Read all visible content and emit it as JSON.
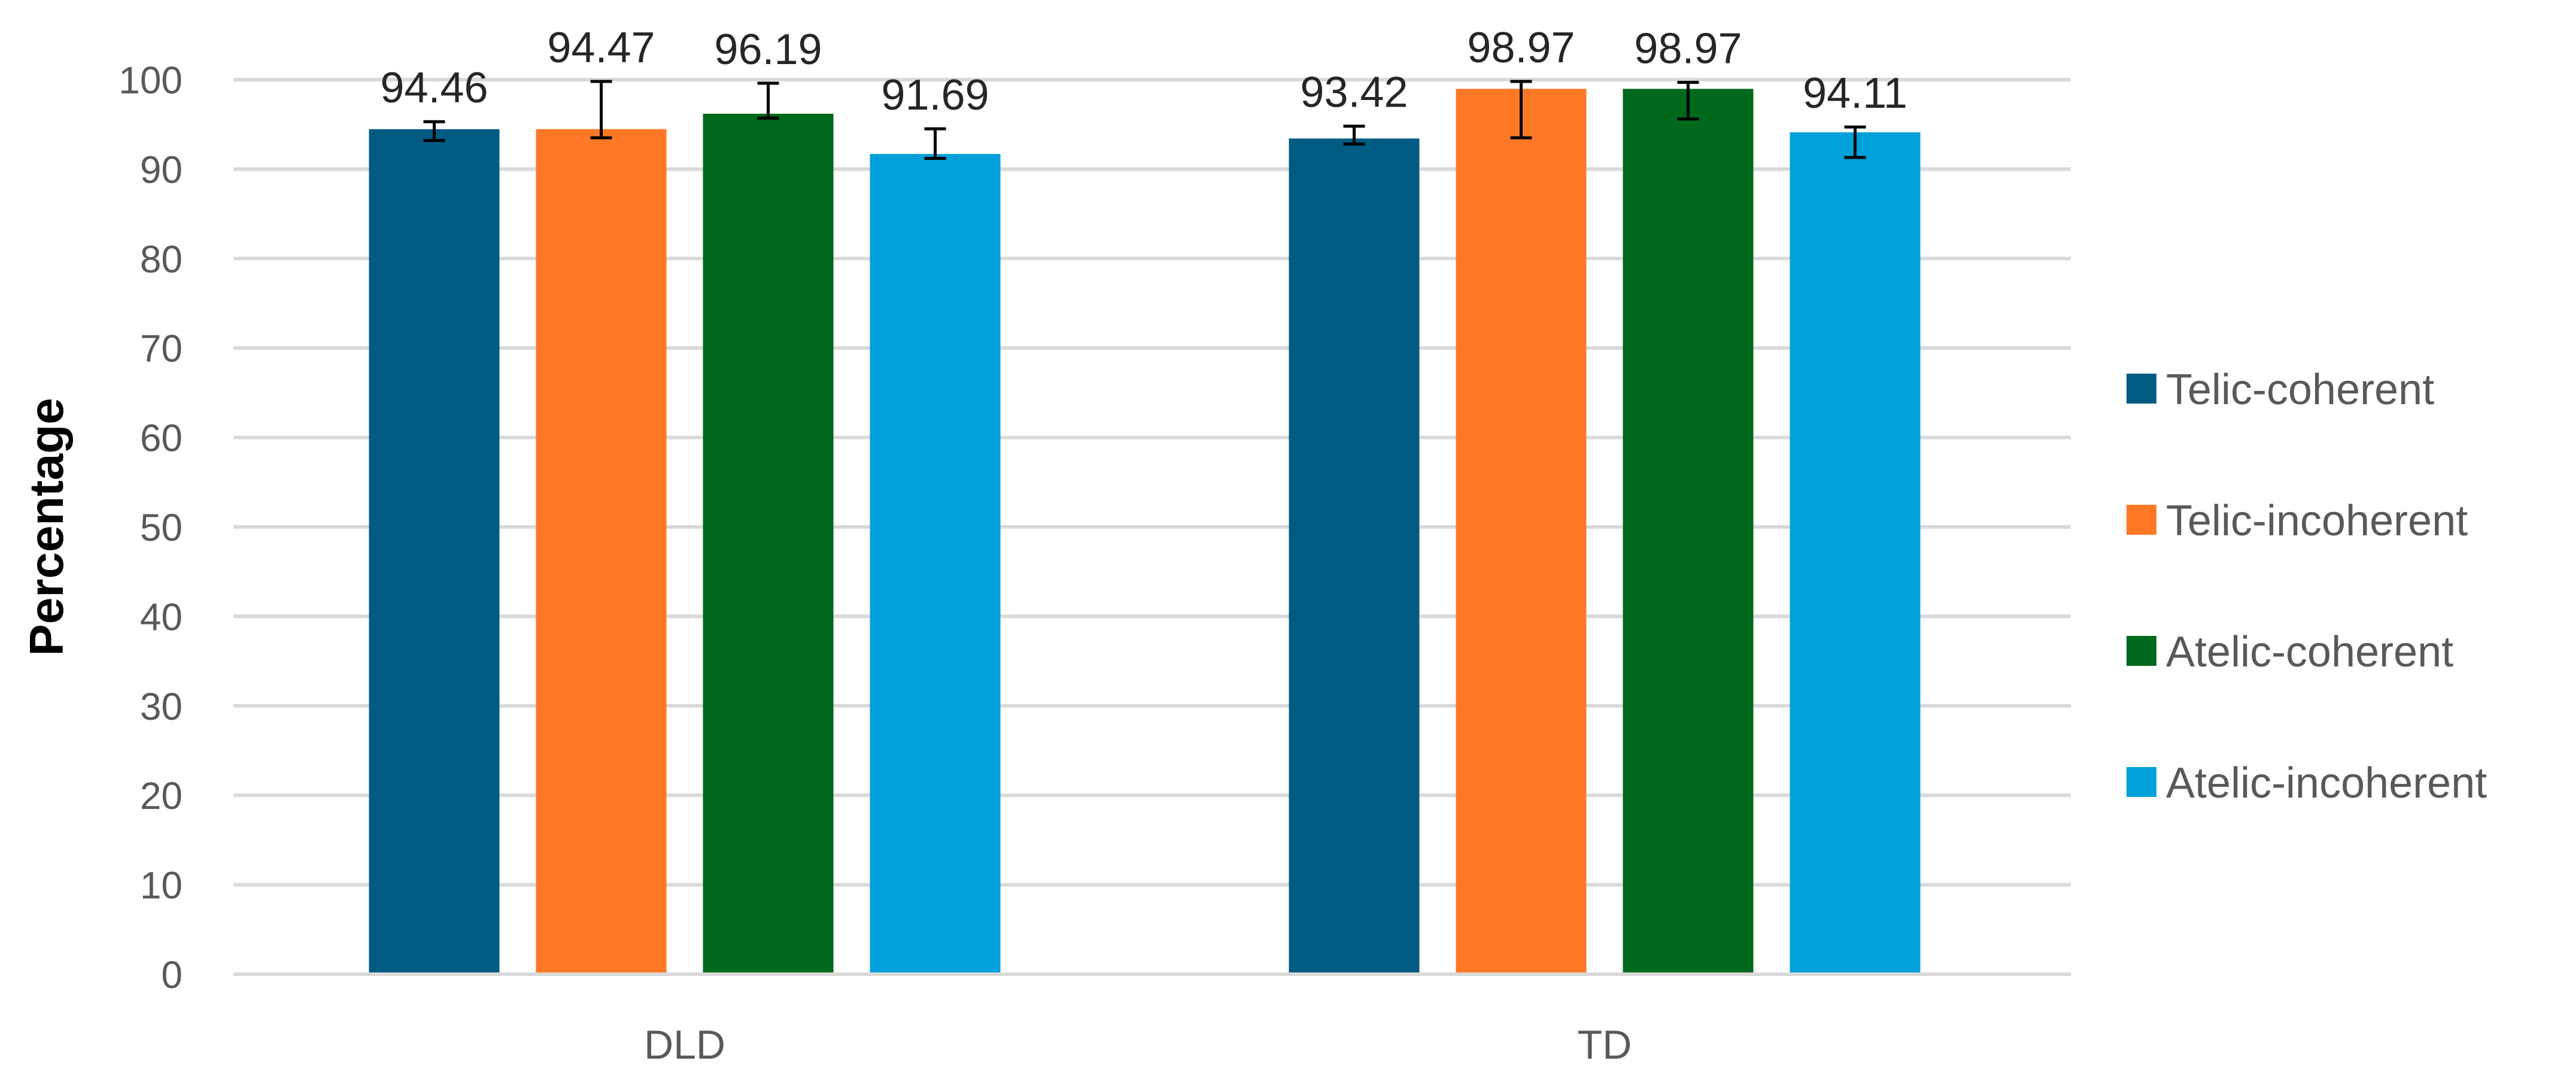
{
  "chart_data": {
    "type": "bar",
    "title": "",
    "xlabel": "",
    "ylabel": "Percentage",
    "ylim": [
      0,
      100
    ],
    "ytick_step": 10,
    "grid": true,
    "legend_position": "right",
    "categories": [
      "DLD",
      "TD"
    ],
    "series": [
      {
        "name": "Telic-coherent",
        "color": "#005b82",
        "values": [
          94.46,
          93.42
        ],
        "labels": [
          "94.46",
          "93.42"
        ],
        "error_low": [
          93.2,
          92.8
        ],
        "error_high": [
          95.3,
          94.8
        ]
      },
      {
        "name": "Telic-incoherent",
        "color": "#ff7826",
        "values": [
          94.47,
          98.97
        ],
        "labels": [
          "94.47",
          "98.97"
        ],
        "error_low": [
          93.5,
          93.5
        ],
        "error_high": [
          99.8,
          99.8
        ]
      },
      {
        "name": "Atelic-coherent",
        "color": "#00691b",
        "values": [
          96.19,
          98.97
        ],
        "labels": [
          "96.19",
          "98.97"
        ],
        "error_low": [
          95.7,
          95.6
        ],
        "error_high": [
          99.6,
          99.7
        ]
      },
      {
        "name": "Atelic-incoherent",
        "color": "#00a0da",
        "values": [
          91.69,
          94.11
        ],
        "labels": [
          "91.69",
          "94.11"
        ],
        "error_low": [
          91.2,
          91.3
        ],
        "error_high": [
          94.5,
          94.7
        ]
      }
    ]
  }
}
